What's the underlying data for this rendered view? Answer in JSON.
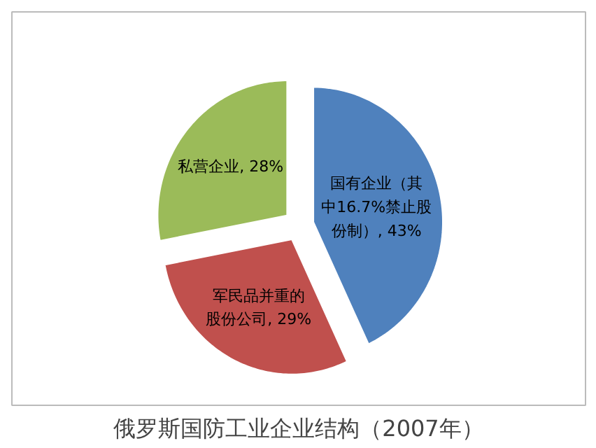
{
  "chart_data": {
    "type": "pie",
    "title": "俄罗斯国防工业企业结构（2007年）",
    "categories": [
      "国有企业（其中16.7%禁止股份制）",
      "军民品并重的股份公司",
      "私营企业"
    ],
    "values": [
      43,
      29,
      28
    ],
    "colors": [
      "#4f81bd",
      "#c0504d",
      "#9bbb59"
    ],
    "value_labels": [
      "43%",
      "29%",
      "28%"
    ]
  }
}
